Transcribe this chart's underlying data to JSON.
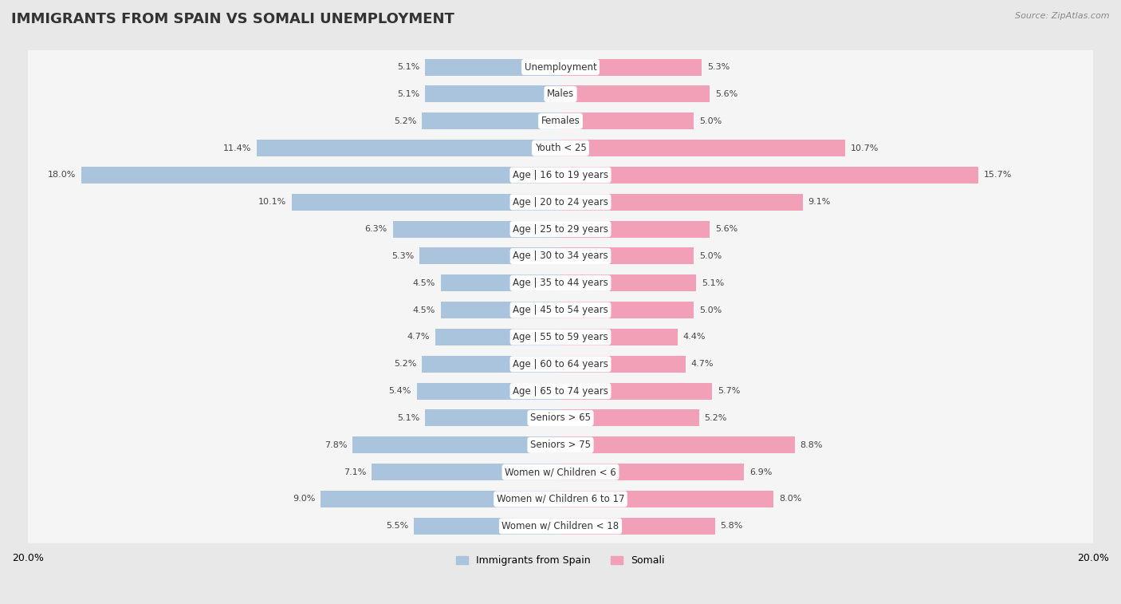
{
  "title": "IMMIGRANTS FROM SPAIN VS SOMALI UNEMPLOYMENT",
  "source": "Source: ZipAtlas.com",
  "categories": [
    "Unemployment",
    "Males",
    "Females",
    "Youth < 25",
    "Age | 16 to 19 years",
    "Age | 20 to 24 years",
    "Age | 25 to 29 years",
    "Age | 30 to 34 years",
    "Age | 35 to 44 years",
    "Age | 45 to 54 years",
    "Age | 55 to 59 years",
    "Age | 60 to 64 years",
    "Age | 65 to 74 years",
    "Seniors > 65",
    "Seniors > 75",
    "Women w/ Children < 6",
    "Women w/ Children 6 to 17",
    "Women w/ Children < 18"
  ],
  "spain_values": [
    5.1,
    5.1,
    5.2,
    11.4,
    18.0,
    10.1,
    6.3,
    5.3,
    4.5,
    4.5,
    4.7,
    5.2,
    5.4,
    5.1,
    7.8,
    7.1,
    9.0,
    5.5
  ],
  "somali_values": [
    5.3,
    5.6,
    5.0,
    10.7,
    15.7,
    9.1,
    5.6,
    5.0,
    5.1,
    5.0,
    4.4,
    4.7,
    5.7,
    5.2,
    8.8,
    6.9,
    8.0,
    5.8
  ],
  "spain_color": "#aac4de",
  "somali_color": "#f2a0b8",
  "axis_max": 20.0,
  "background_color": "#e8e8e8",
  "row_color": "#f5f5f5",
  "bar_height": 0.62,
  "title_fontsize": 13,
  "label_fontsize": 8.5,
  "value_fontsize": 8,
  "legend_spain": "Immigrants from Spain",
  "legend_somali": "Somali"
}
